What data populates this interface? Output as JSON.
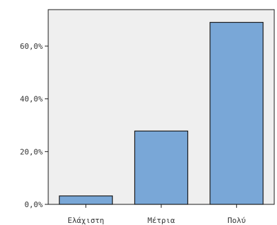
{
  "chart_data": {
    "type": "bar",
    "categories": [
      "Ελάχιστη",
      "Μέτρια",
      "Πολύ"
    ],
    "values": [
      3.2,
      27.8,
      69.0
    ],
    "ylim": [
      0,
      72
    ],
    "yticks": [
      0,
      20,
      40,
      60
    ],
    "ytick_labels": [
      "0,0%",
      "20,0%",
      "40,0%",
      "60,0%"
    ],
    "grid": false,
    "legend": "none"
  },
  "colors": {
    "plot_background": "#efefef",
    "bar_fill": "#79a7d7",
    "bar_stroke": "#1a1a1a",
    "axis": "#1a1a1a"
  }
}
